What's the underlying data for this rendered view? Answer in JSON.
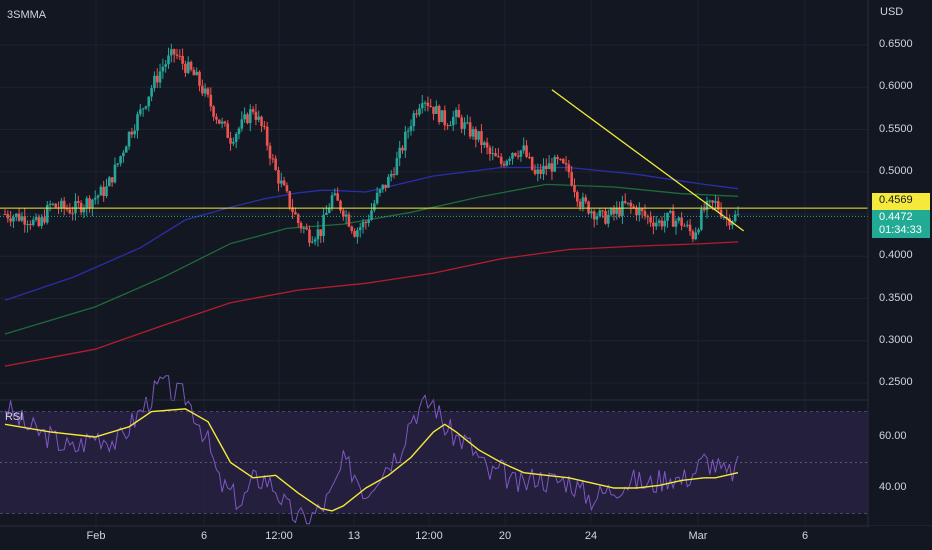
{
  "symbol": "3SMMA",
  "currency": "USD",
  "price_axis_labels": [
    "0.6500",
    "0.6000",
    "0.5500",
    "0.5000",
    "0.4000",
    "0.3500",
    "0.3000",
    "0.2500"
  ],
  "rsi": {
    "title": "RSI",
    "axis_labels": [
      "60.00",
      "40.00"
    ]
  },
  "time_axis_labels": [
    "Feb",
    "6",
    "12:00",
    "13",
    "12:00",
    "20",
    "24",
    "Mar",
    "6"
  ],
  "horizontal_level": {
    "label": "0.4569",
    "value": 0.4569
  },
  "last_price": {
    "value_label": "0.4472",
    "countdown": "01:34:33"
  },
  "colors": {
    "background": "#131722",
    "up_candle": "#26a69a",
    "down_candle": "#ef5350",
    "level_line": "#f5e93b",
    "trendline": "#f5e93b",
    "ma_fast": "#2a2fa8",
    "ma_mid": "#1e6b3a",
    "ma_slow": "#b71c2c",
    "rsi_line": "#7e57c2",
    "rsi_ma": "#f5e93b",
    "rsi_band": "#2a2347",
    "price_tag": "#22ab94"
  },
  "chart_data": {
    "type": "candlestick",
    "title": "",
    "symbol": "3SMMA",
    "y_axis": {
      "unit": "USD",
      "range": [
        0.22,
        0.67
      ],
      "ticks": [
        0.25,
        0.3,
        0.35,
        0.4,
        0.45,
        0.5,
        0.55,
        0.6,
        0.65
      ]
    },
    "x_tick_labels": [
      "Feb",
      "6",
      "12:00",
      "13",
      "12:00",
      "20",
      "24",
      "Mar",
      "6"
    ],
    "price_path": [
      [
        0,
        0.45
      ],
      [
        2,
        0.445
      ],
      [
        3,
        0.435
      ],
      [
        4,
        0.46
      ],
      [
        6,
        0.455
      ],
      [
        8,
        0.47
      ],
      [
        9,
        0.48
      ],
      [
        10,
        0.51
      ],
      [
        11,
        0.545
      ],
      [
        12,
        0.57
      ],
      [
        13,
        0.6
      ],
      [
        14,
        0.625
      ],
      [
        15,
        0.64
      ],
      [
        16,
        0.625
      ],
      [
        17,
        0.61
      ],
      [
        18,
        0.585
      ],
      [
        19,
        0.56
      ],
      [
        20,
        0.54
      ],
      [
        21,
        0.555
      ],
      [
        22,
        0.575
      ],
      [
        23,
        0.545
      ],
      [
        24,
        0.5
      ],
      [
        25,
        0.47
      ],
      [
        26,
        0.44
      ],
      [
        27,
        0.425
      ],
      [
        28,
        0.43
      ],
      [
        29,
        0.47
      ],
      [
        30,
        0.455
      ],
      [
        31,
        0.43
      ],
      [
        32,
        0.44
      ],
      [
        33,
        0.47
      ],
      [
        34,
        0.49
      ],
      [
        35,
        0.52
      ],
      [
        36,
        0.56
      ],
      [
        37,
        0.59
      ],
      [
        38,
        0.575
      ],
      [
        39,
        0.56
      ],
      [
        40,
        0.565
      ],
      [
        41,
        0.55
      ],
      [
        42,
        0.54
      ],
      [
        43,
        0.52
      ],
      [
        44,
        0.51
      ],
      [
        45,
        0.525
      ],
      [
        46,
        0.525
      ],
      [
        47,
        0.495
      ],
      [
        48,
        0.505
      ],
      [
        49,
        0.51
      ],
      [
        50,
        0.5
      ],
      [
        51,
        0.465
      ],
      [
        52,
        0.455
      ],
      [
        53,
        0.445
      ],
      [
        54,
        0.45
      ],
      [
        55,
        0.46
      ],
      [
        56,
        0.455
      ],
      [
        57,
        0.445
      ],
      [
        58,
        0.44
      ],
      [
        59,
        0.445
      ],
      [
        60,
        0.44
      ],
      [
        61,
        0.425
      ],
      [
        62,
        0.455
      ],
      [
        63,
        0.462
      ],
      [
        64,
        0.445
      ],
      [
        65,
        0.447
      ]
    ],
    "trendline": {
      "from": [
        48.5,
        0.597
      ],
      "to": [
        65.5,
        0.43
      ]
    },
    "horizontal_line": 0.4569,
    "moving_averages": [
      {
        "color": "#2a2fa8",
        "points": [
          [
            0,
            0.348
          ],
          [
            6,
            0.375
          ],
          [
            12,
            0.41
          ],
          [
            16,
            0.443
          ],
          [
            20,
            0.458
          ],
          [
            23,
            0.468
          ],
          [
            26,
            0.475
          ],
          [
            28,
            0.478
          ],
          [
            29,
            0.478
          ],
          [
            32,
            0.476
          ],
          [
            38,
            0.495
          ],
          [
            44,
            0.505
          ],
          [
            50,
            0.505
          ],
          [
            56,
            0.497
          ],
          [
            62,
            0.485
          ],
          [
            65,
            0.48
          ]
        ]
      },
      {
        "color": "#1e6b3a",
        "points": [
          [
            0,
            0.308
          ],
          [
            8,
            0.34
          ],
          [
            14,
            0.375
          ],
          [
            20,
            0.415
          ],
          [
            25,
            0.433
          ],
          [
            30,
            0.438
          ],
          [
            36,
            0.452
          ],
          [
            42,
            0.47
          ],
          [
            48,
            0.485
          ],
          [
            54,
            0.482
          ],
          [
            60,
            0.474
          ],
          [
            65,
            0.471
          ]
        ]
      },
      {
        "color": "#b71c2c",
        "points": [
          [
            0,
            0.27
          ],
          [
            8,
            0.29
          ],
          [
            14,
            0.318
          ],
          [
            20,
            0.345
          ],
          [
            26,
            0.36
          ],
          [
            32,
            0.368
          ],
          [
            38,
            0.38
          ],
          [
            44,
            0.397
          ],
          [
            50,
            0.408
          ],
          [
            56,
            0.412
          ],
          [
            62,
            0.415
          ],
          [
            65,
            0.417
          ]
        ]
      }
    ],
    "rsi": {
      "range": [
        25,
        85
      ],
      "band": [
        30,
        70
      ],
      "midline": 50,
      "ticks": [
        40,
        60
      ],
      "line": [
        [
          0,
          72
        ],
        [
          2,
          64
        ],
        [
          4,
          60
        ],
        [
          6,
          55
        ],
        [
          8,
          61
        ],
        [
          10,
          58
        ],
        [
          12,
          70
        ],
        [
          14,
          82
        ],
        [
          15,
          77
        ],
        [
          16,
          76
        ],
        [
          17,
          68
        ],
        [
          18,
          58
        ],
        [
          19,
          42
        ],
        [
          20,
          38
        ],
        [
          21,
          34
        ],
        [
          22,
          43
        ],
        [
          23,
          44
        ],
        [
          24,
          40
        ],
        [
          25,
          32
        ],
        [
          26,
          28
        ],
        [
          27,
          28
        ],
        [
          28,
          32
        ],
        [
          29,
          38
        ],
        [
          30,
          50
        ],
        [
          31,
          46
        ],
        [
          32,
          38
        ],
        [
          33,
          45
        ],
        [
          34,
          50
        ],
        [
          35,
          55
        ],
        [
          36,
          68
        ],
        [
          37,
          72
        ],
        [
          38,
          74
        ],
        [
          39,
          64
        ],
        [
          40,
          60
        ],
        [
          41,
          58
        ],
        [
          42,
          52
        ],
        [
          43,
          45
        ],
        [
          44,
          47
        ],
        [
          45,
          42
        ],
        [
          46,
          41
        ],
        [
          47,
          45
        ],
        [
          48,
          43
        ],
        [
          49,
          43
        ],
        [
          50,
          43
        ],
        [
          51,
          39
        ],
        [
          52,
          36
        ],
        [
          53,
          38
        ],
        [
          54,
          40
        ],
        [
          55,
          42
        ],
        [
          56,
          43
        ],
        [
          57,
          41
        ],
        [
          58,
          43
        ],
        [
          59,
          45
        ],
        [
          60,
          43
        ],
        [
          61,
          46
        ],
        [
          62,
          51
        ],
        [
          63,
          49
        ],
        [
          64,
          45
        ],
        [
          65,
          48
        ]
      ],
      "ma_line": [
        [
          0,
          65
        ],
        [
          4,
          62
        ],
        [
          8,
          60
        ],
        [
          11,
          64
        ],
        [
          13,
          70
        ],
        [
          16,
          71
        ],
        [
          18,
          66
        ],
        [
          19,
          58
        ],
        [
          20,
          50
        ],
        [
          22,
          44
        ],
        [
          24,
          45
        ],
        [
          26,
          38
        ],
        [
          28,
          32
        ],
        [
          29,
          31
        ],
        [
          30,
          33
        ],
        [
          32,
          40
        ],
        [
          34,
          45
        ],
        [
          36,
          52
        ],
        [
          38,
          62
        ],
        [
          39,
          65
        ],
        [
          40,
          62
        ],
        [
          42,
          55
        ],
        [
          44,
          50
        ],
        [
          46,
          46
        ],
        [
          48,
          45
        ],
        [
          50,
          44
        ],
        [
          52,
          42
        ],
        [
          54,
          40
        ],
        [
          56,
          40
        ],
        [
          58,
          41
        ],
        [
          60,
          43
        ],
        [
          62,
          44
        ],
        [
          63,
          44
        ],
        [
          65,
          46
        ]
      ]
    }
  }
}
